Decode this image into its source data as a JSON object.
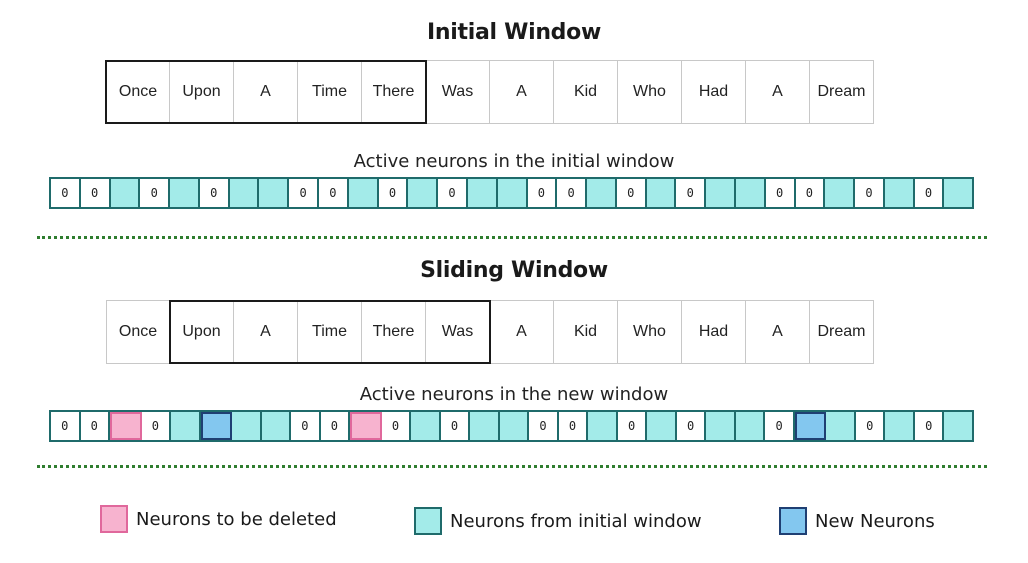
{
  "initial": {
    "title": "Initial Window",
    "subtitle": "Active neurons in the initial window",
    "words": [
      "Once",
      "Upon",
      "A",
      "Time",
      "There",
      "Was",
      "A",
      "Kid",
      "Who",
      "Had",
      "A",
      "Dream"
    ],
    "window_start": 0,
    "window_size": 5,
    "neurons": [
      "0",
      "0",
      "A",
      "0",
      "A",
      "0",
      "A",
      "A",
      "0",
      "0",
      "A",
      "0",
      "A",
      "0",
      "A",
      "A",
      "0",
      "0",
      "A",
      "0",
      "A",
      "0",
      "A",
      "A",
      "0",
      "0",
      "A",
      "0",
      "A",
      "0",
      "A"
    ]
  },
  "sliding": {
    "title": "Sliding Window",
    "subtitle": "Active neurons in the new window",
    "words": [
      "Once",
      "Upon",
      "A",
      "Time",
      "There",
      "Was",
      "A",
      "Kid",
      "Who",
      "Had",
      "A",
      "Dream"
    ],
    "window_start": 1,
    "window_size": 5,
    "neurons": [
      "0",
      "0",
      "D",
      "0",
      "A",
      "N",
      "A",
      "A",
      "0",
      "0",
      "D",
      "0",
      "A",
      "0",
      "A",
      "A",
      "0",
      "0",
      "A",
      "0",
      "A",
      "0",
      "A",
      "A",
      "0",
      "N",
      "A",
      "0",
      "A",
      "0",
      "A"
    ]
  },
  "legend": [
    {
      "label": "Neurons to be deleted",
      "kind": "deleted",
      "fill": "#f7b3cf",
      "border": "#e0689c"
    },
    {
      "label": "Neurons from initial window",
      "kind": "active",
      "fill": "#a3ebe9",
      "border": "#1f6b6b"
    },
    {
      "label": "New Neurons",
      "kind": "new",
      "fill": "#83c7ef",
      "border": "#1f3f73"
    }
  ],
  "colors": {
    "inactive": "#ffffff",
    "active": "#a3ebe9",
    "deleted": "#f7b3cf",
    "new": "#83c7ef",
    "divider": "#2f7d2f"
  },
  "neuron_value_label": "0"
}
